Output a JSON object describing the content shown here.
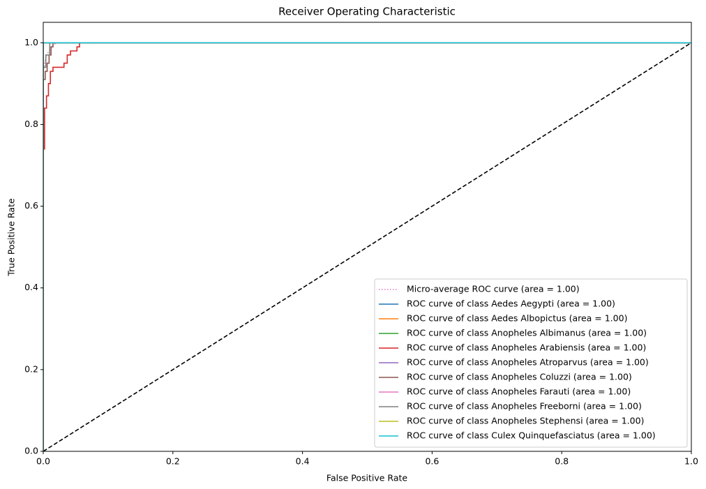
{
  "chart_data": {
    "type": "line",
    "title": "Receiver Operating Characteristic",
    "x_label": "False Positive Rate",
    "y_label": "True Positive Rate",
    "xlim": [
      0,
      1
    ],
    "ylim": [
      0,
      1.05
    ],
    "xticks": [
      {
        "value": 0,
        "label": "0.0"
      },
      0.2,
      0.4,
      0.6,
      0.8,
      {
        "value": 1,
        "label": "1.0"
      }
    ],
    "yticks": [
      {
        "value": 0,
        "label": "0.0"
      },
      0.2,
      0.4,
      0.6,
      0.8,
      {
        "value": 1,
        "label": "1.0"
      }
    ],
    "legend": "lower right",
    "reference_line": {
      "x": [
        0,
        1
      ],
      "y": [
        0,
        1
      ],
      "color": "#000000",
      "linestyle": "dashed"
    },
    "series": [
      {
        "name": "Micro-average ROC curve (area = 1.00)",
        "color": "#e377c2",
        "linestyle": "dotted",
        "x": [
          0,
          0,
          0.002,
          0.005,
          0.009,
          0.013,
          0.02,
          1
        ],
        "y": [
          0,
          0.93,
          0.95,
          0.97,
          0.98,
          0.99,
          1,
          1
        ]
      },
      {
        "name": "ROC curve of class Aedes Aegypti (area = 1.00)",
        "color": "#1f77b4",
        "linestyle": "solid",
        "x": [
          0,
          0,
          1
        ],
        "y": [
          0,
          1,
          1
        ]
      },
      {
        "name": "ROC curve of class Aedes Albopictus (area = 1.00)",
        "color": "#ff7f0e",
        "linestyle": "solid",
        "x": [
          0,
          0,
          1
        ],
        "y": [
          0,
          1,
          1
        ]
      },
      {
        "name": "ROC curve of class Anopheles Albimanus (area = 1.00)",
        "color": "#2ca02c",
        "linestyle": "solid",
        "x": [
          0,
          0,
          1
        ],
        "y": [
          0,
          1,
          1
        ]
      },
      {
        "name": "ROC curve of class Anopheles Arabiensis (area = 1.00)",
        "color": "#d62728",
        "linestyle": "solid",
        "x": [
          0,
          0,
          0.002,
          0.002,
          0.005,
          0.005,
          0.008,
          0.008,
          0.011,
          0.011,
          0.015,
          0.015,
          0.032,
          0.032,
          0.037,
          0.037,
          0.042,
          0.042,
          0.052,
          0.052,
          0.056,
          0.056,
          1
        ],
        "y": [
          0,
          0.74,
          0.74,
          0.84,
          0.84,
          0.87,
          0.87,
          0.9,
          0.9,
          0.93,
          0.93,
          0.94,
          0.94,
          0.95,
          0.95,
          0.97,
          0.97,
          0.98,
          0.98,
          0.99,
          0.99,
          1,
          1
        ]
      },
      {
        "name": "ROC curve of class Anopheles Atroparvus (area = 1.00)",
        "color": "#9467bd",
        "linestyle": "solid",
        "x": [
          0,
          0,
          1
        ],
        "y": [
          0,
          1,
          1
        ]
      },
      {
        "name": "ROC curve of class Anopheles Coluzzi (area = 1.00)",
        "color": "#8c564b",
        "linestyle": "solid",
        "x": [
          0,
          0,
          0.003,
          0.003,
          0.006,
          0.006,
          0.009,
          0.009,
          0.012,
          0.012,
          0.015,
          0.015,
          1
        ],
        "y": [
          0,
          0.91,
          0.91,
          0.93,
          0.93,
          0.95,
          0.95,
          0.97,
          0.97,
          0.99,
          0.99,
          1,
          1
        ]
      },
      {
        "name": "ROC curve of class Anopheles Farauti (area = 1.00)",
        "color": "#e377c2",
        "linestyle": "solid",
        "x": [
          0,
          0,
          1
        ],
        "y": [
          0,
          1,
          1
        ]
      },
      {
        "name": "ROC curve of class Anopheles Freeborni (area = 1.00)",
        "color": "#7f7f7f",
        "linestyle": "solid",
        "x": [
          0,
          0,
          0.004,
          0.004,
          0.01,
          0.01,
          1
        ],
        "y": [
          0,
          0.94,
          0.94,
          0.97,
          0.97,
          1,
          1
        ]
      },
      {
        "name": "ROC curve of class Anopheles Stephensi (area = 1.00)",
        "color": "#bcbd22",
        "linestyle": "solid",
        "x": [
          0,
          0,
          1
        ],
        "y": [
          0,
          1,
          1
        ]
      },
      {
        "name": "ROC curve of class Culex Quinquefasciatus (area = 1.00)",
        "color": "#17becf",
        "linestyle": "solid",
        "x": [
          0,
          0,
          1
        ],
        "y": [
          0,
          1,
          1
        ]
      }
    ]
  }
}
